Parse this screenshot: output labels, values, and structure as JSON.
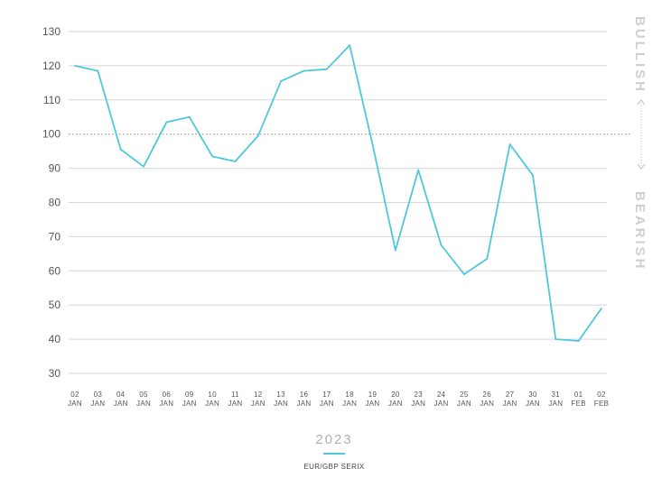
{
  "chart_data": {
    "type": "line",
    "title": "",
    "xlabel": "",
    "ylabel": "",
    "ylim": [
      30,
      130
    ],
    "yticks": [
      30,
      40,
      50,
      60,
      70,
      80,
      90,
      100,
      110,
      120,
      130
    ],
    "reference_line": 100,
    "grid": true,
    "categories": [
      [
        "02",
        "JAN"
      ],
      [
        "03",
        "JAN"
      ],
      [
        "04",
        "JAN"
      ],
      [
        "05",
        "JAN"
      ],
      [
        "06",
        "JAN"
      ],
      [
        "09",
        "JAN"
      ],
      [
        "10",
        "JAN"
      ],
      [
        "11",
        "JAN"
      ],
      [
        "12",
        "JAN"
      ],
      [
        "13",
        "JAN"
      ],
      [
        "16",
        "JAN"
      ],
      [
        "17",
        "JAN"
      ],
      [
        "18",
        "JAN"
      ],
      [
        "19",
        "JAN"
      ],
      [
        "20",
        "JAN"
      ],
      [
        "23",
        "JAN"
      ],
      [
        "24",
        "JAN"
      ],
      [
        "25",
        "JAN"
      ],
      [
        "26",
        "JAN"
      ],
      [
        "27",
        "JAN"
      ],
      [
        "30",
        "JAN"
      ],
      [
        "31",
        "JAN"
      ],
      [
        "01",
        "FEB"
      ],
      [
        "02",
        "FEB"
      ]
    ],
    "series": [
      {
        "name": "EUR/GBP SERIX",
        "color": "#4fc8dc",
        "values": [
          120,
          118.5,
          95.5,
          90.5,
          103.5,
          105,
          93.5,
          92,
          99.5,
          115.5,
          118.5,
          119,
          126,
          97,
          66,
          89.5,
          67.5,
          59,
          63.5,
          97,
          88,
          40,
          39.5,
          49
        ]
      }
    ],
    "side_labels": {
      "top": "BULLISH",
      "bottom": "BEARISH"
    },
    "year": "2023",
    "legend": {
      "label": "EUR/GBP SERIX",
      "position": "bottom"
    }
  }
}
